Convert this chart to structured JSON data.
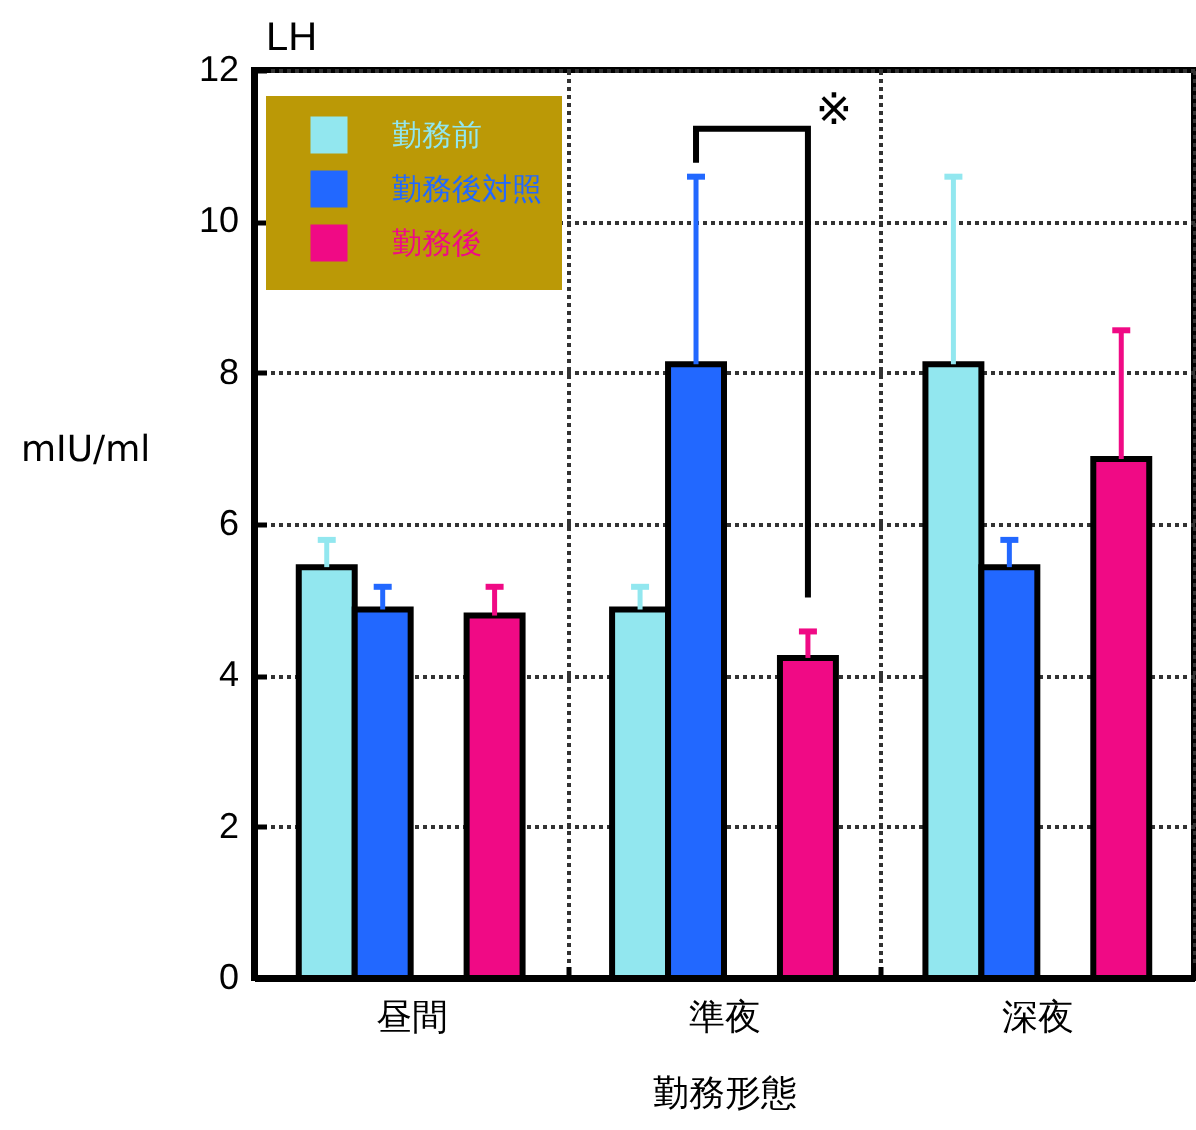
{
  "chart_data": {
    "type": "bar",
    "title": "LH",
    "xlabel": "勤務形態",
    "ylabel": "mIU/ml",
    "categories": [
      "昼間",
      "準夜",
      "深夜"
    ],
    "series": [
      {
        "name": "勤務前",
        "color": "#92e7ef",
        "values": [
          5.43,
          4.87,
          8.11
        ],
        "errors": [
          [
            5.43,
            5.79
          ],
          [
            4.87,
            5.17
          ],
          [
            8.11,
            10.59
          ]
        ]
      },
      {
        "name": "勤務後対照",
        "color": "#2268ff",
        "values": [
          4.87,
          8.11,
          5.43
        ],
        "errors": [
          [
            4.87,
            5.17
          ],
          [
            8.11,
            10.59
          ],
          [
            5.43,
            5.79
          ]
        ]
      },
      {
        "name": "勤務後",
        "color": "#f00a85",
        "values": [
          4.79,
          4.23,
          6.86
        ],
        "errors": [
          [
            4.79,
            5.17
          ],
          [
            4.23,
            4.58
          ],
          [
            6.86,
            8.56
          ]
        ]
      }
    ],
    "ylim": [
      0,
      12
    ],
    "yticks": [
      0,
      2,
      4,
      6,
      8,
      10,
      12
    ],
    "grid": true,
    "legend": "top left",
    "annotations": [
      "※"
    ]
  }
}
